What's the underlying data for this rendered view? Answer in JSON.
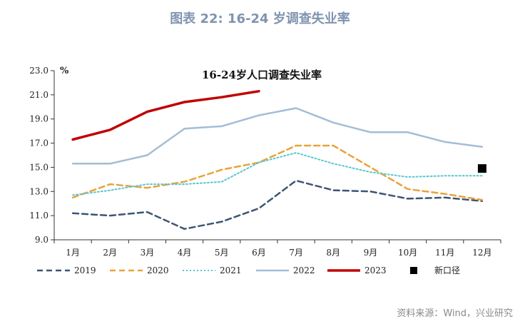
{
  "figure_title": "图表 22: 16-24 岁调查失业率",
  "source": "资料来源：Wind，兴业研究",
  "chart_data": {
    "type": "line",
    "title": "16-24岁人口调查失业率",
    "ylabel": "%",
    "ylim": [
      9.0,
      23.0
    ],
    "yticks": [
      "23.0",
      "21.0",
      "19.0",
      "17.0",
      "15.0",
      "13.0",
      "11.0",
      "9.0"
    ],
    "categories": [
      "1月",
      "2月",
      "3月",
      "4月",
      "5月",
      "6月",
      "7月",
      "8月",
      "9月",
      "10月",
      "11月",
      "12月"
    ],
    "series": [
      {
        "name": "2019",
        "color": "#3d5575",
        "style": "dashed",
        "values": [
          11.2,
          11.0,
          11.3,
          9.9,
          10.5,
          11.6,
          13.9,
          13.1,
          13.0,
          12.4,
          12.5,
          12.2
        ]
      },
      {
        "name": "2020",
        "color": "#e8a33a",
        "style": "dashed",
        "values": [
          12.5,
          13.6,
          13.3,
          13.8,
          14.8,
          15.4,
          16.8,
          16.8,
          15.0,
          13.2,
          12.8,
          12.3
        ]
      },
      {
        "name": "2021",
        "color": "#57c7cf",
        "style": "dotted",
        "values": [
          12.7,
          13.1,
          13.6,
          13.6,
          13.8,
          15.4,
          16.2,
          15.3,
          14.6,
          14.2,
          14.3,
          14.3
        ]
      },
      {
        "name": "2022",
        "color": "#a3bdd6",
        "style": "solid",
        "values": [
          15.3,
          15.3,
          16.0,
          18.2,
          18.4,
          19.3,
          19.9,
          18.7,
          17.9,
          17.9,
          17.1,
          16.7
        ]
      },
      {
        "name": "2023",
        "color": "#c00000",
        "style": "solid-thick",
        "values": [
          17.3,
          18.1,
          19.6,
          20.4,
          20.8,
          21.3,
          null,
          null,
          null,
          null,
          null,
          null
        ]
      },
      {
        "name": "新口径",
        "color": "#000000",
        "style": "square-marker",
        "values": [
          null,
          null,
          null,
          null,
          null,
          null,
          null,
          null,
          null,
          null,
          null,
          14.9
        ]
      }
    ]
  }
}
